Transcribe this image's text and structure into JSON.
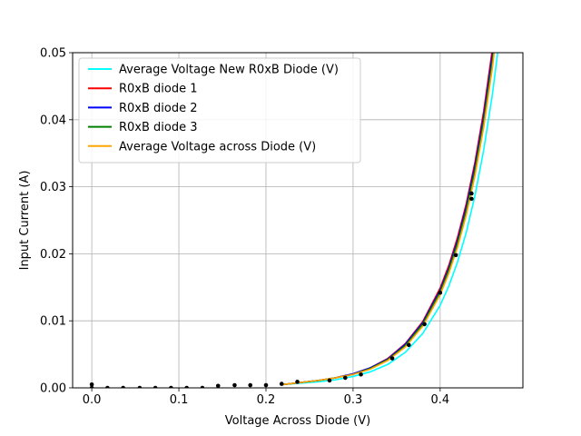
{
  "chart_data": {
    "type": "line",
    "title": "",
    "xlabel": "Voltage Across Diode (V)",
    "ylabel": "Input Current (A)",
    "xlim": [
      -0.022,
      0.495
    ],
    "ylim": [
      0,
      0.05
    ],
    "x_ticks": [
      0.0,
      0.1,
      0.2,
      0.3,
      0.4
    ],
    "x_tick_labels": [
      "0.0",
      "0.1",
      "0.2",
      "0.3",
      "0.4"
    ],
    "y_ticks": [
      0.0,
      0.01,
      0.02,
      0.03,
      0.04,
      0.05
    ],
    "y_tick_labels": [
      "0.00",
      "0.01",
      "0.02",
      "0.03",
      "0.04",
      "0.05"
    ],
    "grid": true,
    "legend_position": "top-left",
    "series": [
      {
        "name": "Average Voltage New R0xB Diode (V)",
        "color": "#00ffff",
        "x": [
          0.22,
          0.24,
          0.26,
          0.28,
          0.3,
          0.32,
          0.34,
          0.36,
          0.38,
          0.4,
          0.41,
          0.42,
          0.43,
          0.44,
          0.45,
          0.46,
          0.47,
          0.476
        ],
        "y": [
          0.0005,
          0.0007,
          0.0009,
          0.0012,
          0.0017,
          0.0024,
          0.0035,
          0.0053,
          0.0081,
          0.0123,
          0.0152,
          0.0188,
          0.0232,
          0.0287,
          0.0355,
          0.0438,
          0.0541,
          0.06
        ]
      },
      {
        "name": "R0xB diode 1",
        "color": "#ff0000",
        "x": [
          0.22,
          0.24,
          0.26,
          0.28,
          0.3,
          0.32,
          0.34,
          0.36,
          0.38,
          0.4,
          0.41,
          0.42,
          0.43,
          0.44,
          0.45,
          0.46,
          0.468
        ],
        "y": [
          0.0005,
          0.0008,
          0.0011,
          0.0015,
          0.0021,
          0.003,
          0.0044,
          0.0066,
          0.0099,
          0.0149,
          0.0183,
          0.0225,
          0.0275,
          0.0337,
          0.0413,
          0.0506,
          0.06
        ]
      },
      {
        "name": "R0xB diode 2",
        "color": "#0000ff",
        "x": [
          0.22,
          0.24,
          0.26,
          0.28,
          0.3,
          0.32,
          0.34,
          0.36,
          0.38,
          0.4,
          0.41,
          0.42,
          0.43,
          0.44,
          0.45,
          0.46,
          0.469
        ],
        "y": [
          0.0005,
          0.0008,
          0.0011,
          0.0015,
          0.0021,
          0.003,
          0.0043,
          0.0065,
          0.0097,
          0.0146,
          0.0179,
          0.022,
          0.027,
          0.0331,
          0.0405,
          0.0497,
          0.06
        ]
      },
      {
        "name": "R0xB diode 3",
        "color": "#008000",
        "x": [
          0.22,
          0.24,
          0.26,
          0.28,
          0.3,
          0.32,
          0.34,
          0.36,
          0.38,
          0.4,
          0.41,
          0.42,
          0.43,
          0.44,
          0.45,
          0.46,
          0.47
        ],
        "y": [
          0.0005,
          0.0008,
          0.0011,
          0.0015,
          0.002,
          0.0029,
          0.0042,
          0.0063,
          0.0095,
          0.0143,
          0.0176,
          0.0216,
          0.0265,
          0.0325,
          0.0398,
          0.0488,
          0.06
        ]
      },
      {
        "name": "Average Voltage across Diode (V)",
        "color": "#ffa500",
        "x": [
          0.22,
          0.24,
          0.26,
          0.28,
          0.3,
          0.32,
          0.34,
          0.36,
          0.38,
          0.4,
          0.41,
          0.42,
          0.43,
          0.44,
          0.45,
          0.46,
          0.471
        ],
        "y": [
          0.0005,
          0.0008,
          0.0011,
          0.0015,
          0.002,
          0.0028,
          0.0041,
          0.0061,
          0.0092,
          0.0139,
          0.0171,
          0.021,
          0.0258,
          0.0317,
          0.0389,
          0.0478,
          0.06
        ]
      }
    ],
    "points": {
      "color": "#000000",
      "x": [
        0.0,
        0.0,
        0.018,
        0.036,
        0.055,
        0.073,
        0.091,
        0.109,
        0.127,
        0.145,
        0.164,
        0.182,
        0.2,
        0.218,
        0.236,
        0.273,
        0.291,
        0.309,
        0.345,
        0.364,
        0.382,
        0.4,
        0.418,
        0.436,
        0.436
      ],
      "y": [
        0.0,
        0.0005,
        0.0,
        0.0,
        0.0,
        0.0,
        0.0,
        0.0,
        0.0,
        0.0003,
        0.0004,
        0.0004,
        0.0004,
        0.0006,
        0.0009,
        0.0011,
        0.0015,
        0.002,
        0.0044,
        0.0064,
        0.0095,
        0.0142,
        0.0198,
        0.0282,
        0.029
      ]
    }
  }
}
